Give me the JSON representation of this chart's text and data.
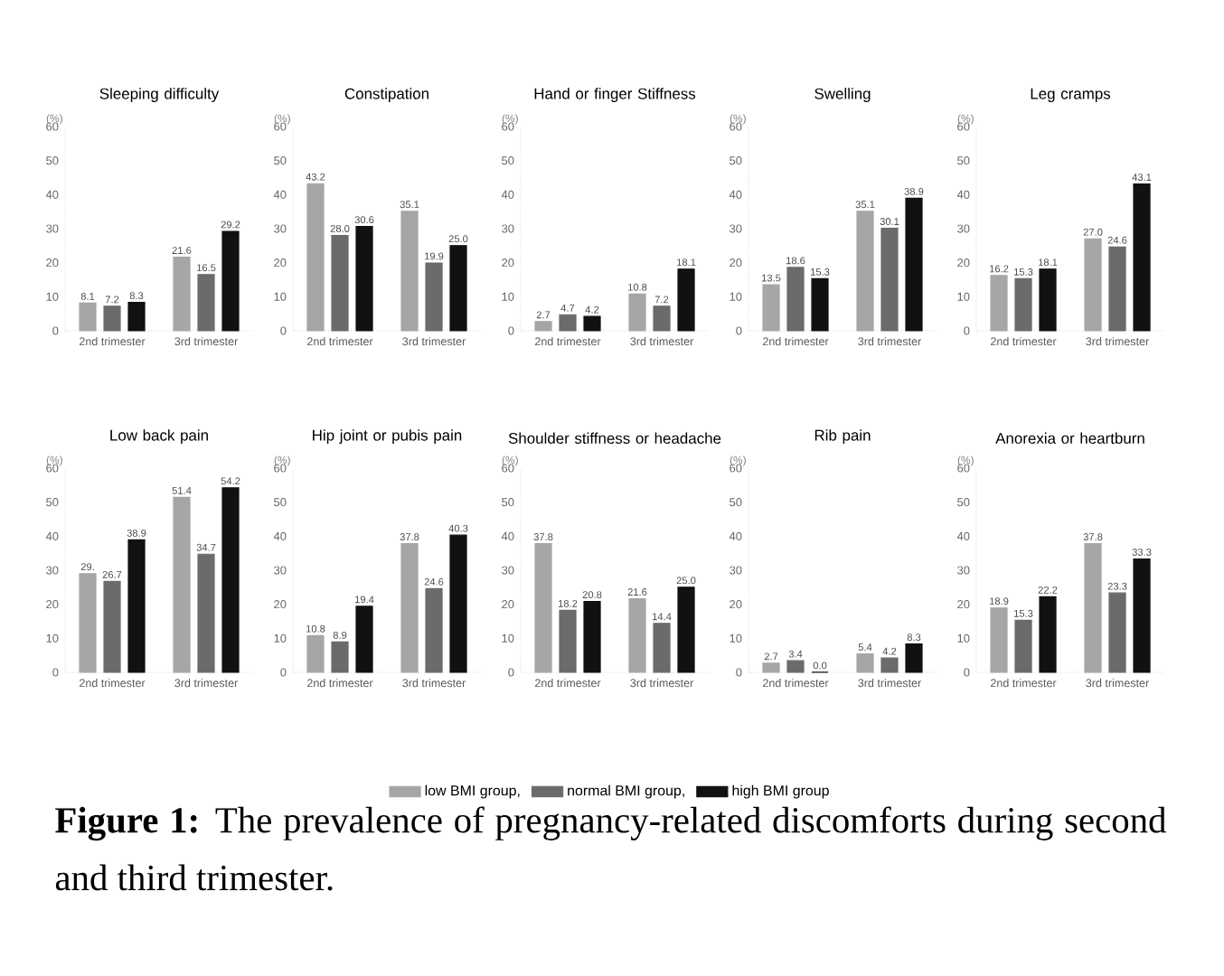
{
  "chart_data": [
    {
      "type": "bar",
      "title": "Sleeping difficulty",
      "ylabel": "(%)",
      "categories": [
        "2nd trimester",
        "3rd trimester"
      ],
      "ylim": [
        0,
        60
      ],
      "yticks": [
        0,
        10,
        20,
        30,
        40,
        50,
        60
      ],
      "legend": "bottom",
      "annotations": [
        "**Figure 1:** The prevalence of pregnancy-related discomforts during second and third trimester."
      ],
      "series": [
        {
          "name": "low BMI group,",
          "color": "#a6a6a6",
          "values": [
            8.1,
            21.6
          ],
          "value_labels": [
            "8.1",
            "21.6"
          ]
        },
        {
          "name": "normal BMI group,",
          "color": "#6b6b6b",
          "values": [
            7.2,
            16.5
          ],
          "value_labels": [
            "7.2",
            "16.5"
          ]
        },
        {
          "name": "high BMI group",
          "color": "#111111",
          "values": [
            8.3,
            29.2
          ],
          "value_labels": [
            "8.3",
            "29.2"
          ]
        }
      ]
    },
    {
      "type": "bar",
      "title": "Constipation",
      "ylabel": "(%)",
      "categories": [
        "2nd trimester",
        "3rd trimester"
      ],
      "ylim": [
        0,
        60
      ],
      "yticks": [
        0,
        10,
        20,
        30,
        40,
        50,
        60
      ],
      "series": [
        {
          "color": "#a6a6a6",
          "values": [
            43.2,
            35.1
          ],
          "value_labels": [
            "43.2",
            "35.1"
          ]
        },
        {
          "color": "#6b6b6b",
          "values": [
            28.0,
            19.9
          ],
          "value_labels": [
            "28.0",
            "19.9"
          ]
        },
        {
          "color": "#111111",
          "values": [
            30.6,
            25.0
          ],
          "value_labels": [
            "30.6",
            "25.0"
          ]
        }
      ]
    },
    {
      "type": "bar",
      "title": "Hand or finger Stiffness",
      "ylabel": "(%)",
      "categories": [
        "2nd trimester",
        "3rd trimester"
      ],
      "ylim": [
        0,
        60
      ],
      "yticks": [
        0,
        10,
        20,
        30,
        40,
        50,
        60
      ],
      "series": [
        {
          "color": "#a6a6a6",
          "values": [
            2.7,
            10.8
          ],
          "value_labels": [
            "2.7",
            "10.8"
          ]
        },
        {
          "color": "#6b6b6b",
          "values": [
            4.7,
            7.2
          ],
          "value_labels": [
            "4.7",
            "7.2"
          ]
        },
        {
          "color": "#111111",
          "values": [
            4.2,
            18.1
          ],
          "value_labels": [
            "4.2",
            "18.1"
          ]
        }
      ]
    },
    {
      "type": "bar",
      "title": "Swelling",
      "ylabel": "(%)",
      "categories": [
        "2nd trimester",
        "3rd trimester"
      ],
      "ylim": [
        0,
        60
      ],
      "yticks": [
        0,
        10,
        20,
        30,
        40,
        50,
        60
      ],
      "series": [
        {
          "color": "#a6a6a6",
          "values": [
            13.5,
            35.1
          ],
          "value_labels": [
            "13.5",
            "35.1"
          ]
        },
        {
          "color": "#6b6b6b",
          "values": [
            18.6,
            30.1
          ],
          "value_labels": [
            "18.6",
            "30.1"
          ]
        },
        {
          "color": "#111111",
          "values": [
            15.3,
            38.9
          ],
          "value_labels": [
            "15.3",
            "38.9"
          ]
        }
      ]
    },
    {
      "type": "bar",
      "title": "Leg cramps",
      "ylabel": "(%)",
      "categories": [
        "2nd trimester",
        "3rd trimester"
      ],
      "ylim": [
        0,
        60
      ],
      "yticks": [
        0,
        10,
        20,
        30,
        40,
        50,
        60
      ],
      "series": [
        {
          "color": "#a6a6a6",
          "values": [
            16.2,
            27.0
          ],
          "value_labels": [
            "16.2",
            "27.0"
          ]
        },
        {
          "color": "#6b6b6b",
          "values": [
            15.3,
            24.6
          ],
          "value_labels": [
            "15.3",
            "24.6"
          ]
        },
        {
          "color": "#111111",
          "values": [
            18.1,
            43.1
          ],
          "value_labels": [
            "18.1",
            "43.1"
          ]
        }
      ]
    },
    {
      "type": "bar",
      "title": "Low back pain",
      "ylabel": "(%)",
      "categories": [
        "2nd trimester",
        "3rd trimester"
      ],
      "ylim": [
        0,
        60
      ],
      "yticks": [
        0,
        10,
        20,
        30,
        40,
        50,
        60
      ],
      "series": [
        {
          "color": "#a6a6a6",
          "values": [
            29,
            51.4
          ],
          "value_labels": [
            "29.",
            "51.4"
          ]
        },
        {
          "color": "#6b6b6b",
          "values": [
            26.7,
            34.7
          ],
          "value_labels": [
            "26.7",
            "34.7"
          ]
        },
        {
          "color": "#111111",
          "values": [
            38.9,
            54.2
          ],
          "value_labels": [
            "38.9",
            "54.2"
          ]
        }
      ]
    },
    {
      "type": "bar",
      "title": "Hip joint or pubis pain",
      "ylabel": "(%)",
      "categories": [
        "2nd trimester",
        "3rd trimester"
      ],
      "ylim": [
        0,
        60
      ],
      "yticks": [
        0,
        10,
        20,
        30,
        40,
        50,
        60
      ],
      "series": [
        {
          "color": "#a6a6a6",
          "values": [
            10.8,
            37.8
          ],
          "value_labels": [
            "10.8",
            "37.8"
          ]
        },
        {
          "color": "#6b6b6b",
          "values": [
            8.9,
            24.6
          ],
          "value_labels": [
            "8.9",
            "24.6"
          ]
        },
        {
          "color": "#111111",
          "values": [
            19.4,
            40.3
          ],
          "value_labels": [
            "19.4",
            "40.3"
          ]
        }
      ]
    },
    {
      "type": "bar",
      "title": "Shoulder stiffness or headache",
      "ylabel": "(%)",
      "categories": [
        "2nd trimester",
        "3rd trimester"
      ],
      "ylim": [
        0,
        60
      ],
      "yticks": [
        0,
        10,
        20,
        30,
        40,
        50,
        60
      ],
      "series": [
        {
          "color": "#a6a6a6",
          "values": [
            37.8,
            21.6
          ],
          "value_labels": [
            "37.8",
            "21.6"
          ]
        },
        {
          "color": "#6b6b6b",
          "values": [
            18.2,
            14.4
          ],
          "value_labels": [
            "18.2",
            "14.4"
          ]
        },
        {
          "color": "#111111",
          "values": [
            20.8,
            25.0
          ],
          "value_labels": [
            "20.8",
            "25.0"
          ]
        }
      ]
    },
    {
      "type": "bar",
      "title": "Rib pain",
      "ylabel": "(%)",
      "categories": [
        "2nd trimester",
        "3rd trimester"
      ],
      "ylim": [
        0,
        60
      ],
      "yticks": [
        0,
        10,
        20,
        30,
        40,
        50,
        60
      ],
      "series": [
        {
          "color": "#a6a6a6",
          "values": [
            2.7,
            5.4
          ],
          "value_labels": [
            "2.7",
            "5.4"
          ]
        },
        {
          "color": "#6b6b6b",
          "values": [
            3.4,
            4.2
          ],
          "value_labels": [
            "3.4",
            "4.2"
          ]
        },
        {
          "color": "#111111",
          "values": [
            0.0,
            8.3
          ],
          "value_labels": [
            "0.0",
            "8.3"
          ]
        }
      ]
    },
    {
      "type": "bar",
      "title": "Anorexia or heartburn",
      "ylabel": "(%)",
      "categories": [
        "2nd trimester",
        "3rd trimester"
      ],
      "ylim": [
        0,
        60
      ],
      "yticks": [
        0,
        10,
        20,
        30,
        40,
        50,
        60
      ],
      "series": [
        {
          "color": "#a6a6a6",
          "values": [
            18.9,
            37.8
          ],
          "value_labels": [
            "18.9",
            "37.8"
          ]
        },
        {
          "color": "#6b6b6b",
          "values": [
            15.3,
            23.3
          ],
          "value_labels": [
            "15.3",
            "23.3"
          ]
        },
        {
          "color": "#111111",
          "values": [
            22.2,
            33.3
          ],
          "value_labels": [
            "22.2",
            "33.3"
          ]
        }
      ]
    }
  ]
}
